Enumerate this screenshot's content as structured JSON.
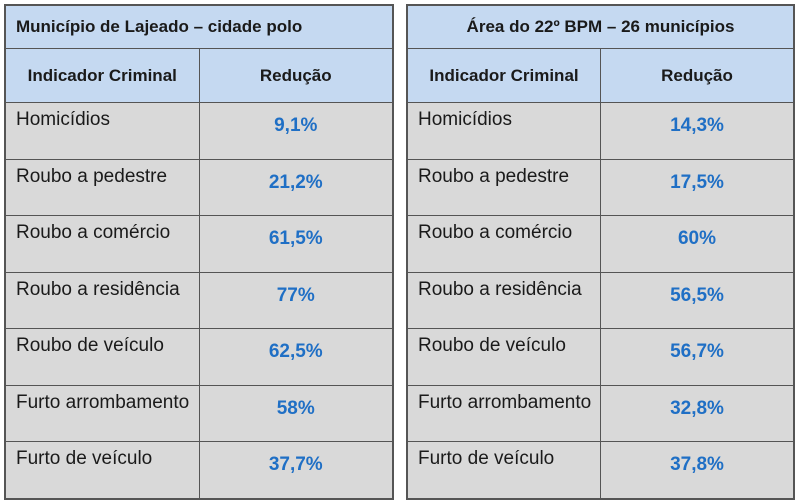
{
  "tables": [
    {
      "title": "Município de Lajeado – cidade polo",
      "col_indicator": "Indicador Criminal",
      "col_reduction": "Redução",
      "rows": [
        {
          "indicator": "Homicídios",
          "reduction": "9,1%"
        },
        {
          "indicator": "Roubo a pedestre",
          "reduction": "21,2%"
        },
        {
          "indicator": "Roubo a comércio",
          "reduction": "61,5%"
        },
        {
          "indicator": "Roubo a residência",
          "reduction": "77%"
        },
        {
          "indicator": "Roubo de veículo",
          "reduction": "62,5%"
        },
        {
          "indicator": "Furto arrombamento",
          "reduction": "58%"
        },
        {
          "indicator": "Furto de veículo",
          "reduction": "37,7%"
        }
      ]
    },
    {
      "title": "Área do 22º BPM – 26 municípios",
      "col_indicator": "Indicador Criminal",
      "col_reduction": "Redução",
      "rows": [
        {
          "indicator": "Homicídios",
          "reduction": "14,3%"
        },
        {
          "indicator": "Roubo a pedestre",
          "reduction": "17,5%"
        },
        {
          "indicator": "Roubo a comércio",
          "reduction": "60%"
        },
        {
          "indicator": "Roubo a residência",
          "reduction": "56,5%"
        },
        {
          "indicator": "Roubo de veículo",
          "reduction": "56,7%"
        },
        {
          "indicator": "Furto arrombamento",
          "reduction": "32,8%"
        },
        {
          "indicator": "Furto de veículo",
          "reduction": "37,8%"
        }
      ]
    }
  ],
  "colors": {
    "header_bg": "#c5d9f1",
    "cell_bg": "#d9d9d9",
    "reduction_text": "#1f6fc5"
  }
}
